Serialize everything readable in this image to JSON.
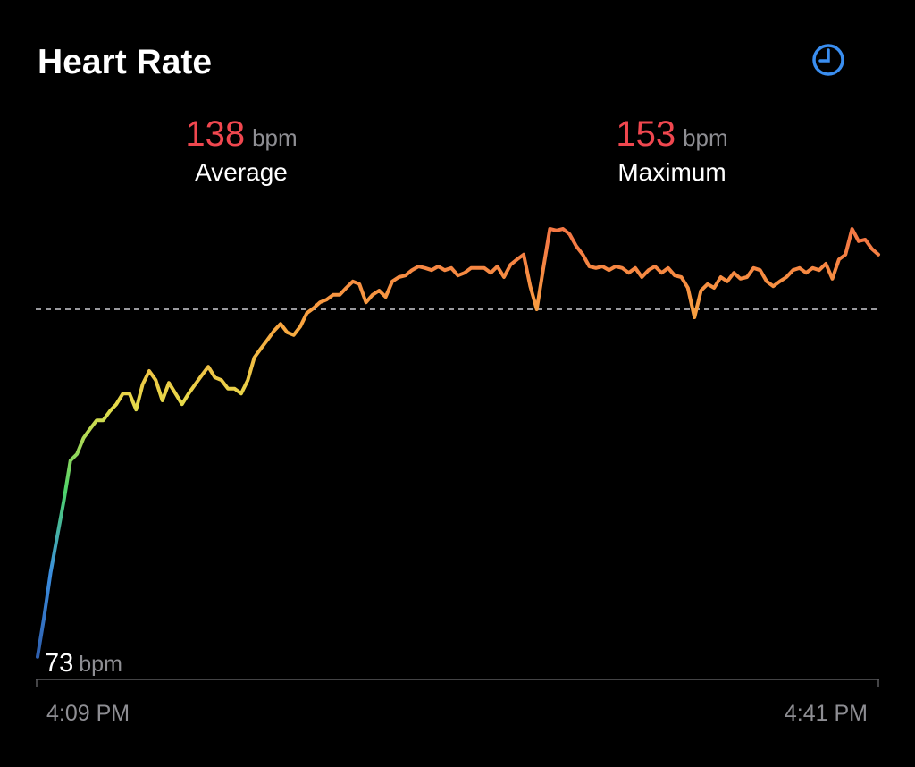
{
  "chart_data": {
    "type": "line",
    "title": "Heart Rate",
    "stats": [
      {
        "value": 138,
        "unit": "bpm",
        "label": "Average"
      },
      {
        "value": 153,
        "unit": "bpm",
        "label": "Maximum"
      }
    ],
    "min": {
      "value": 73,
      "unit": "bpm"
    },
    "x_labels": [
      "4:09 PM",
      "4:41 PM"
    ],
    "values": [
      73.2,
      80.7,
      89,
      95.7,
      102.3,
      109.8,
      111,
      114,
      115.7,
      117.3,
      117.3,
      119,
      120.3,
      122.3,
      122.3,
      119.3,
      124,
      126.5,
      124.8,
      121,
      124.3,
      122.3,
      120.3,
      122.3,
      124,
      125.7,
      127.3,
      125.3,
      124.8,
      123.2,
      123.2,
      122.3,
      124.8,
      129,
      130.7,
      132.3,
      134,
      135.3,
      133.7,
      133.2,
      134.8,
      137.3,
      138.2,
      139.3,
      139.8,
      140.7,
      140.7,
      142,
      143.2,
      142.7,
      139.3,
      140.7,
      141.5,
      140.3,
      143.2,
      144,
      144.3,
      145.3,
      146,
      145.7,
      145.3,
      146,
      145.3,
      145.7,
      144.3,
      144.8,
      145.7,
      145.7,
      145.7,
      144.8,
      146,
      144,
      146.3,
      147.3,
      148.2,
      142.3,
      138,
      145.7,
      153,
      152.7,
      153,
      152,
      149.8,
      148.2,
      146,
      145.7,
      146,
      145.3,
      146,
      145.7,
      144.8,
      145.7,
      144,
      145.3,
      146,
      144.8,
      145.7,
      144.3,
      144,
      142,
      136.5,
      141.5,
      142.7,
      142,
      144,
      143.2,
      144.8,
      143.7,
      144,
      145.7,
      145.3,
      143.2,
      142.3,
      143.2,
      144,
      145.3,
      145.7,
      144.8,
      145.7,
      145.3,
      146.5,
      143.7,
      147.3,
      148.2,
      153,
      150.7,
      151,
      149.3,
      148.2
    ],
    "ylim": [
      69,
      155
    ],
    "average_line": true,
    "line_gradient": [
      "#2f5fae",
      "#3b8ee0",
      "#4fd36a",
      "#e6dc4a",
      "#f9a440",
      "#f47844"
    ],
    "stat_color": "#f0474f"
  }
}
